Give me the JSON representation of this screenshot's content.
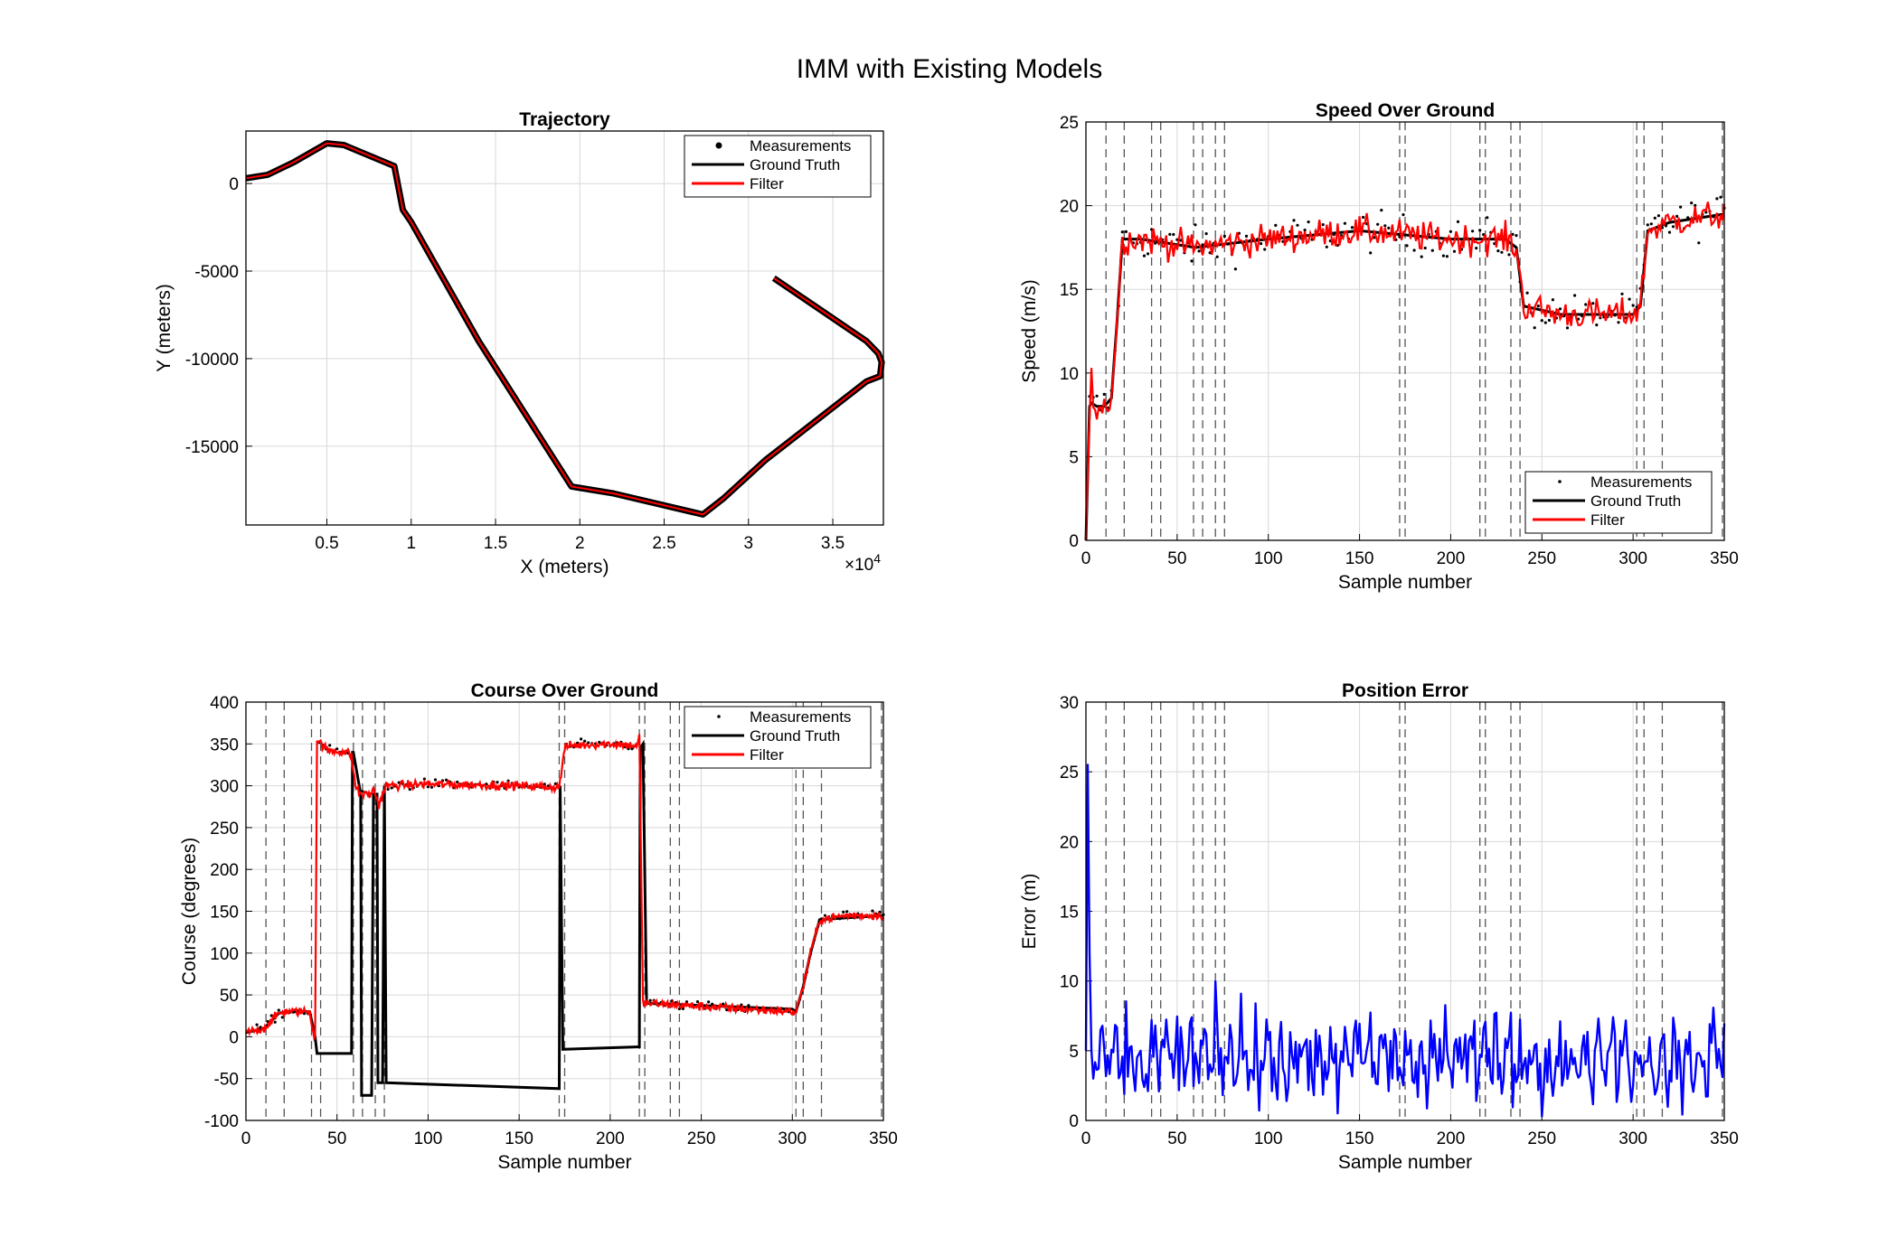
{
  "figure": {
    "title": "IMM with Existing Models"
  },
  "colors": {
    "measurement": "#000000",
    "ground_truth": "#000000",
    "filter": "#ff0000",
    "error": "#0000ff",
    "grid": "#d8d8d8",
    "mode_switch": "#555555"
  },
  "chart_data": [
    {
      "id": "trajectory",
      "type": "line",
      "title": "Trajectory",
      "xlabel": "X (meters)",
      "ylabel": "Y (meters)",
      "x_exponent_label": "×10",
      "x_exponent_power": "4",
      "xlim": [
        200,
        38000
      ],
      "ylim": [
        -19500,
        3000
      ],
      "xticks": [
        5000,
        10000,
        15000,
        20000,
        25000,
        30000,
        35000
      ],
      "xtick_labels": [
        "0.5",
        "1",
        "1.5",
        "2",
        "2.5",
        "3",
        "3.5"
      ],
      "yticks": [
        0,
        -5000,
        -10000,
        -15000
      ],
      "ytick_labels": [
        "0",
        "-5000",
        "-10000",
        "-15000"
      ],
      "grid": true,
      "legend": {
        "position": "top-right",
        "entries": [
          "Measurements",
          "Ground Truth",
          "Filter"
        ]
      },
      "path": {
        "x": [
          200,
          1500,
          3000,
          5000,
          6000,
          9000,
          9500,
          10000,
          14000,
          19500,
          22000,
          27300,
          28500,
          31000,
          37000,
          37800,
          37900,
          37700,
          37000,
          31500
        ],
        "y": [
          300,
          500,
          1200,
          2300,
          2200,
          1000,
          -1500,
          -2200,
          -9000,
          -17300,
          -17700,
          -18900,
          -18000,
          -15800,
          -11300,
          -11000,
          -10200,
          -9700,
          -9000,
          -5400
        ]
      }
    },
    {
      "id": "speed",
      "type": "line",
      "title": "Speed Over Ground",
      "xlabel": "Sample number",
      "ylabel": "Speed (m/s)",
      "xlim": [
        0,
        350
      ],
      "ylim": [
        0,
        25
      ],
      "xticks": [
        0,
        50,
        100,
        150,
        200,
        250,
        300,
        350
      ],
      "yticks": [
        0,
        5,
        10,
        15,
        20,
        25
      ],
      "grid": true,
      "legend": {
        "position": "bottom-right",
        "entries": [
          "Measurements",
          "Ground Truth",
          "Filter"
        ]
      },
      "mode_switches": [
        11,
        21,
        36,
        41,
        59,
        64,
        71,
        76,
        172,
        175,
        216,
        219,
        233,
        238,
        302,
        306,
        316,
        349
      ],
      "ground_truth": {
        "x": [
          0,
          1,
          2,
          3,
          6,
          10,
          14,
          17,
          20,
          30,
          60,
          100,
          150,
          200,
          230,
          236,
          240,
          260,
          300,
          304,
          308,
          320,
          350
        ],
        "y": [
          0,
          4,
          8,
          8.2,
          8,
          8,
          8.5,
          13,
          18,
          18,
          17.5,
          18,
          18.5,
          18,
          18,
          17.5,
          14,
          13.5,
          13.5,
          14,
          18.5,
          19,
          19.5
        ]
      },
      "filter_noise": 0.45
    },
    {
      "id": "course",
      "type": "line",
      "title": "Course Over Ground",
      "xlabel": "Sample number",
      "ylabel": "Course (degrees)",
      "xlim": [
        0,
        350
      ],
      "ylim": [
        -100,
        400
      ],
      "xticks": [
        0,
        50,
        100,
        150,
        200,
        250,
        300,
        350
      ],
      "yticks": [
        -100,
        -50,
        0,
        50,
        100,
        150,
        200,
        250,
        300,
        350,
        400
      ],
      "grid": true,
      "legend": {
        "position": "top-right",
        "entries": [
          "Measurements",
          "Ground Truth",
          "Filter"
        ]
      },
      "mode_switches": [
        11,
        21,
        36,
        41,
        59,
        64,
        71,
        76,
        172,
        175,
        216,
        219,
        233,
        238,
        302,
        306,
        316,
        349
      ],
      "ground_truth": {
        "x": [
          0,
          10,
          18,
          22,
          35,
          37,
          38,
          39,
          39.5,
          58,
          58.5,
          59,
          63,
          63.5,
          64,
          69,
          70,
          72,
          72.5,
          75,
          76,
          77,
          172,
          172.5,
          174,
          216,
          216.5,
          218,
          220,
          300,
          302,
          306,
          310,
          315,
          350
        ],
        "y": [
          5,
          10,
          28,
          30,
          30,
          10,
          0,
          -20,
          -20,
          -20,
          340,
          340,
          290,
          -70,
          -70,
          -70,
          290,
          290,
          -55,
          -55,
          300,
          -55,
          -62,
          300,
          -15,
          -12,
          345,
          350,
          40,
          33,
          30,
          60,
          100,
          140,
          145
        ]
      },
      "filter": {
        "x": [
          0,
          10,
          18,
          22,
          35,
          37,
          38,
          39,
          45,
          56,
          58,
          60,
          63,
          68,
          70,
          72,
          73,
          75,
          77,
          100,
          150,
          172,
          175,
          178,
          200,
          215,
          216,
          217,
          218,
          220,
          260,
          300,
          302,
          306,
          310,
          315,
          330,
          350
        ],
        "y": [
          5,
          10,
          28,
          30,
          30,
          5,
          0,
          355,
          342,
          340,
          335,
          300,
          290,
          290,
          295,
          285,
          275,
          290,
          300,
          302,
          300,
          298,
          345,
          348,
          350,
          348,
          360,
          200,
          40,
          40,
          35,
          30,
          30,
          60,
          100,
          140,
          145,
          145
        ]
      },
      "filter_noise": 2.5
    },
    {
      "id": "position_error",
      "type": "line",
      "title": "Position Error",
      "xlabel": "Sample number",
      "ylabel": "Error (m)",
      "xlim": [
        0,
        350
      ],
      "ylim": [
        0,
        30
      ],
      "xticks": [
        0,
        50,
        100,
        150,
        200,
        250,
        300,
        350
      ],
      "yticks": [
        0,
        5,
        10,
        15,
        20,
        25,
        30
      ],
      "grid": true,
      "mode_switches": [
        11,
        21,
        36,
        41,
        59,
        64,
        71,
        76,
        172,
        175,
        216,
        219,
        233,
        238,
        302,
        306,
        316,
        349
      ],
      "error_peak": {
        "x": [
          0,
          1,
          2,
          3,
          4
        ],
        "y": [
          5,
          25.5,
          12,
          5,
          3
        ]
      },
      "error_mean": 4.5,
      "error_amplitude": 3.2
    }
  ]
}
